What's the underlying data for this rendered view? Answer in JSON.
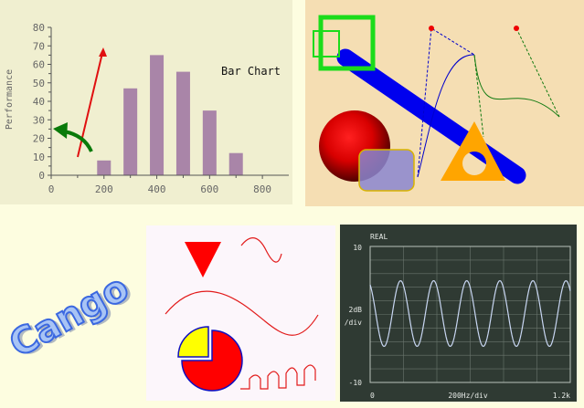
{
  "chart_data": {
    "type": "bar",
    "title": "Bar Chart",
    "ylabel": "Performance",
    "xlabel": "",
    "x": [
      200,
      300,
      400,
      500,
      600,
      700
    ],
    "values": [
      8,
      47,
      65,
      56,
      35,
      12
    ],
    "xlim": [
      0,
      900
    ],
    "ylim": [
      0,
      80
    ],
    "x_ticks": [
      0,
      200,
      400,
      600,
      800
    ],
    "y_ticks": [
      0,
      10,
      20,
      30,
      40,
      50,
      60,
      70,
      80
    ],
    "bar_color": "#a985a8",
    "grid": false
  },
  "scope": {
    "mode_label": "REAL",
    "y_top": "10",
    "y_bottom": "-10",
    "y_scale_1": "2dB",
    "y_scale_2": "/div",
    "x_left": "0",
    "x_mid": "200Hz/div",
    "x_right": "1.2k",
    "trace_color": "#c8d6f2"
  },
  "logo": {
    "text": "Cango",
    "fill": "#a8c4f5",
    "stroke": "#3b68e0"
  },
  "colors": {
    "panel1_bg": "#f0efd0",
    "panel2_bg": "#f5deb3",
    "panel3_bg": "#fcf6fb",
    "scope_bg": "#2f3a33",
    "red": "#ff0000",
    "green": "#1bdc1b",
    "blue": "#0000ff",
    "orange": "#ffa500",
    "yellow": "#ffff00"
  }
}
